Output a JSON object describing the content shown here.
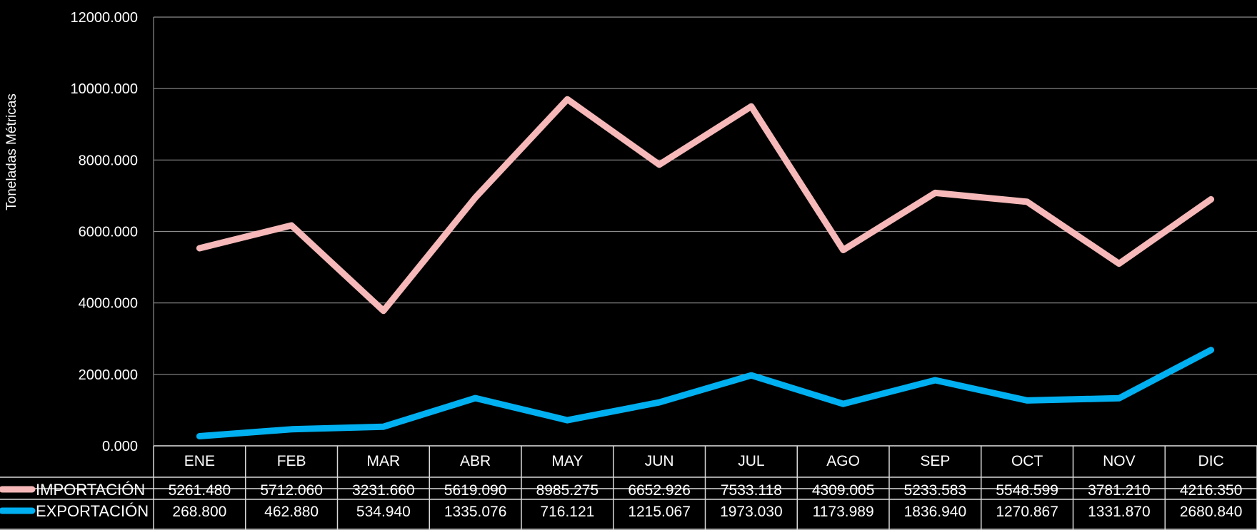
{
  "chart_data": {
    "type": "line",
    "ylabel": "Toneladas Métricas",
    "ylim": [
      0,
      12000
    ],
    "yticks": [
      "12000.000",
      "10000.000",
      "8000.000",
      "6000.000",
      "4000.000",
      "2000.000",
      "0.000"
    ],
    "grid": true,
    "legend": "data-table",
    "categories": [
      "ENE",
      "FEB",
      "MAR",
      "ABR",
      "MAY",
      "JUN",
      "JUL",
      "AGO",
      "SEP",
      "OCT",
      "NOV",
      "DIC"
    ],
    "series": [
      {
        "name": "IMPORTACIÓN",
        "color": "#f6b8b8",
        "plotted": [
          5530,
          6170,
          3780,
          6950,
          9700,
          7870,
          9500,
          5480,
          7080,
          6830,
          5100,
          6900
        ],
        "labels": [
          "5261.480",
          "5712.060",
          "3231.660",
          "5619.090",
          "8985.275",
          "6652.926",
          "7533.118",
          "4309.005",
          "5233.583",
          "5548.599",
          "3781.210",
          "4216.350"
        ]
      },
      {
        "name": "EXPORTACIÓN",
        "color": "#00b0f0",
        "plotted": [
          268.8,
          462.88,
          534.94,
          1335.076,
          716.121,
          1215.067,
          1973.03,
          1173.989,
          1836.94,
          1270.867,
          1331.87,
          2680.84
        ],
        "labels": [
          "268.800",
          "462.880",
          "534.940",
          "1335.076",
          "716.121",
          "1215.067",
          "1973.030",
          "1173.989",
          "1836.940",
          "1270.867",
          "1331.870",
          "2680.840"
        ]
      }
    ]
  }
}
